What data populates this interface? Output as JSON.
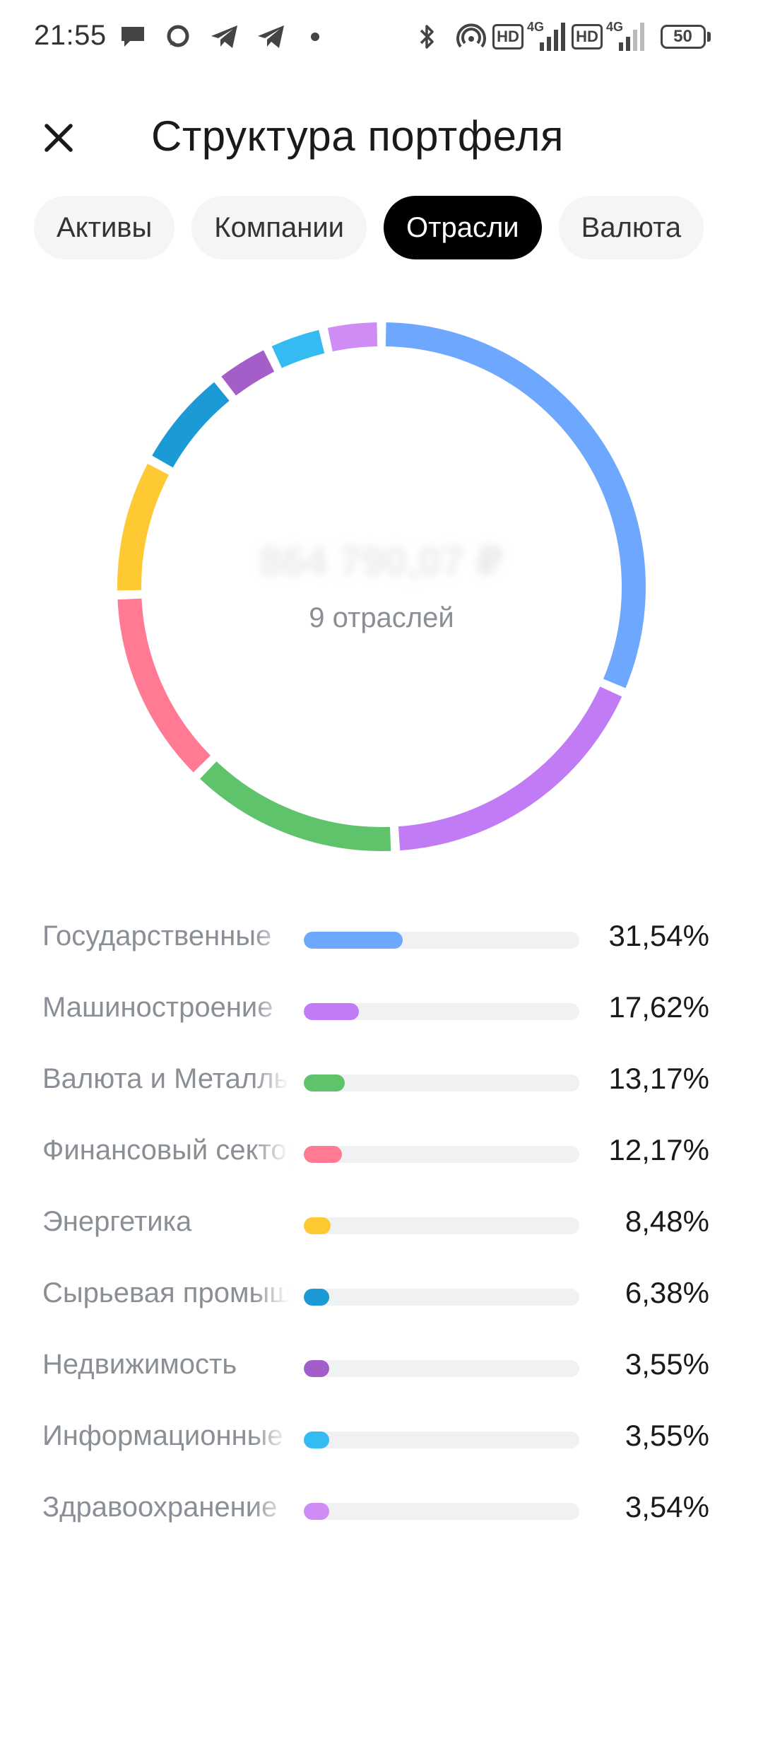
{
  "status_bar": {
    "time": "21:55",
    "battery": "50",
    "network_1": "4G",
    "network_2": "4G",
    "hd_1": "HD",
    "hd_2": "HD",
    "icons": [
      "chat-bubble-icon",
      "message-icon",
      "telegram-icon",
      "telegram-icon",
      "dot-icon",
      "bluetooth-icon",
      "hotspot-icon",
      "signal-icon",
      "signal-icon",
      "battery-icon"
    ]
  },
  "header": {
    "title": "Структура портфеля",
    "close_icon": "close-icon"
  },
  "tabs": [
    {
      "label": "Активы",
      "active": false
    },
    {
      "label": "Компании",
      "active": false
    },
    {
      "label": "Отрасли",
      "active": true
    },
    {
      "label": "Валюта",
      "active": false
    }
  ],
  "summary": {
    "total": "864 790,07 ₽",
    "count_label": "9 отраслей"
  },
  "chart_data": {
    "type": "pie",
    "categories": [
      "Государственные",
      "Машиностроение",
      "Валюта и Металлы",
      "Финансовый сектор",
      "Энергетика",
      "Сырьевая промышленность",
      "Недвижимость",
      "Информационные",
      "Здравоохранение"
    ],
    "values": [
      31.54,
      17.62,
      13.17,
      12.17,
      8.48,
      6.38,
      3.55,
      3.55,
      3.54
    ],
    "colors": [
      "#6ea8fe",
      "#c17cf5",
      "#5ec36a",
      "#ff7a92",
      "#ffc933",
      "#1b9ad6",
      "#a45ec9",
      "#33bbf2",
      "#d08cf5"
    ]
  },
  "legend": [
    {
      "label": "Государственные",
      "value": "31,54%",
      "share": 0.3154,
      "color": "#6ea8fe"
    },
    {
      "label": "Машиностроение",
      "value": "17,62%",
      "share": 0.1762,
      "color": "#c17cf5"
    },
    {
      "label": "Валюта и Металлы",
      "value": "13,17%",
      "share": 0.1317,
      "color": "#5ec36a"
    },
    {
      "label": "Финансовый сектор",
      "value": "12,17%",
      "share": 0.1217,
      "color": "#ff7a92"
    },
    {
      "label": "Энергетика",
      "value": "8,48%",
      "share": 0.0848,
      "color": "#ffc933"
    },
    {
      "label": "Сырьевая промышленность",
      "value": "6,38%",
      "share": 0.0638,
      "color": "#1b9ad6"
    },
    {
      "label": "Недвижимость",
      "value": "3,55%",
      "share": 0.0355,
      "color": "#a45ec9"
    },
    {
      "label": "Информационные",
      "value": "3,55%",
      "share": 0.0355,
      "color": "#33bbf2"
    },
    {
      "label": "Здравоохранение",
      "value": "3,54%",
      "share": 0.0354,
      "color": "#d08cf5"
    }
  ]
}
